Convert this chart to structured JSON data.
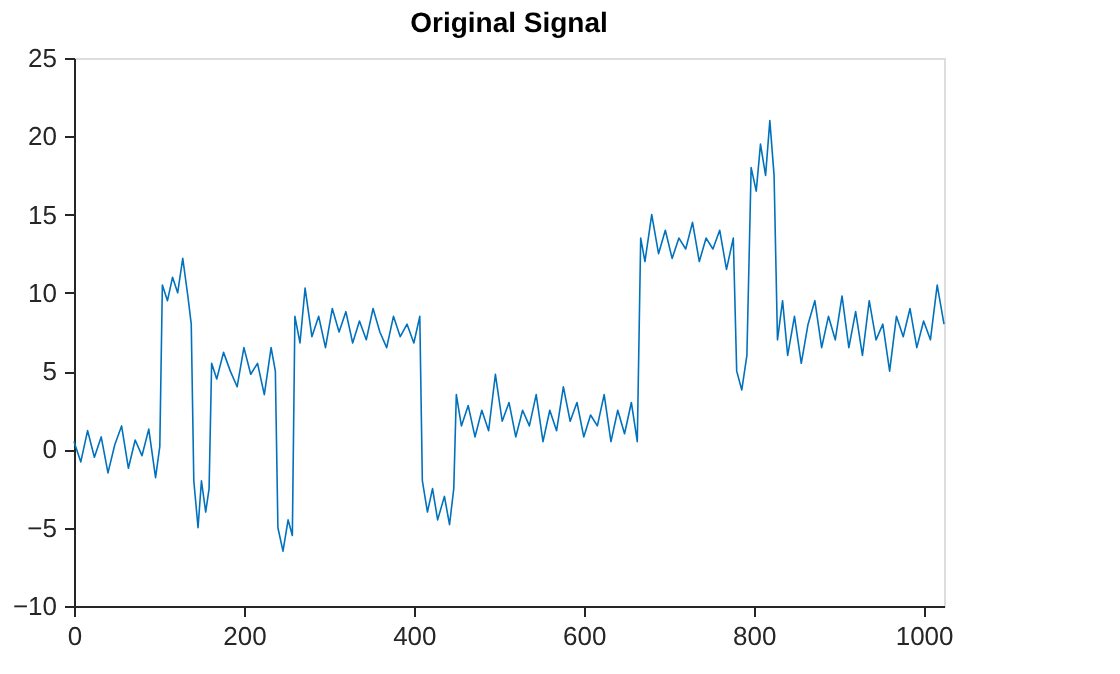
{
  "chart_data": {
    "type": "line",
    "title": "Original Signal",
    "xlim": [
      0,
      1024
    ],
    "xticks": [
      0,
      200,
      400,
      600,
      800,
      1000
    ],
    "ylim": [
      -10,
      25
    ],
    "yticks": [
      -10,
      -5,
      0,
      5,
      10,
      15,
      20,
      25
    ],
    "grid": false,
    "legend": false,
    "marker": "none",
    "line_style": "solid",
    "x": [
      0,
      8,
      16,
      24,
      32,
      40,
      48,
      56,
      64,
      72,
      80,
      88,
      96,
      101,
      104,
      110,
      116,
      122,
      128,
      134,
      138,
      141,
      146,
      150,
      155,
      159,
      162,
      168,
      176,
      184,
      192,
      200,
      208,
      216,
      224,
      232,
      237,
      240,
      246,
      252,
      257,
      260,
      266,
      272,
      280,
      288,
      296,
      304,
      312,
      320,
      328,
      336,
      344,
      352,
      360,
      368,
      376,
      384,
      392,
      400,
      407,
      410,
      416,
      422,
      428,
      436,
      442,
      447,
      450,
      456,
      464,
      472,
      480,
      488,
      496,
      504,
      512,
      520,
      528,
      536,
      544,
      552,
      560,
      568,
      576,
      584,
      592,
      600,
      608,
      616,
      624,
      632,
      640,
      648,
      656,
      663,
      667,
      672,
      680,
      688,
      696,
      704,
      712,
      720,
      728,
      736,
      744,
      752,
      760,
      768,
      776,
      780,
      786,
      792,
      797,
      803,
      808,
      814,
      819,
      824,
      828,
      834,
      840,
      848,
      856,
      864,
      872,
      880,
      888,
      896,
      904,
      912,
      920,
      928,
      936,
      944,
      952,
      960,
      968,
      976,
      984,
      992,
      1000,
      1008,
      1016,
      1024
    ],
    "series": [
      {
        "color": "#0072bd",
        "values": [
          0.5,
          -0.8,
          1.2,
          -0.5,
          0.8,
          -1.5,
          0.3,
          1.5,
          -1.2,
          0.6,
          -0.4,
          1.3,
          -1.8,
          0.2,
          10.5,
          9.5,
          11,
          10,
          12.2,
          9.8,
          8,
          -2,
          -5,
          -2,
          -4,
          -2.5,
          5.5,
          4.5,
          6.2,
          5,
          4,
          6.5,
          4.8,
          5.5,
          3.5,
          6.5,
          5,
          -5,
          -6.5,
          -4.5,
          -5.5,
          8.5,
          6.8,
          10.3,
          7.2,
          8.5,
          6.5,
          9,
          7.5,
          8.8,
          6.8,
          8.2,
          7,
          9,
          7.5,
          6.5,
          8.5,
          7.2,
          8,
          6.8,
          8.5,
          -2,
          -4,
          -2.5,
          -4.5,
          -3,
          -4.8,
          -2.5,
          3.5,
          1.5,
          2.8,
          0.8,
          2.5,
          1.2,
          4.8,
          1.8,
          3,
          0.8,
          2.5,
          1.5,
          3.5,
          0.5,
          2.5,
          1.2,
          4,
          1.8,
          3,
          0.8,
          2.2,
          1.5,
          3.5,
          0.5,
          2.5,
          1,
          3,
          0.5,
          13.5,
          12,
          15,
          12.5,
          14,
          12.2,
          13.5,
          12.8,
          14.5,
          12,
          13.5,
          12.8,
          14,
          11.5,
          13.5,
          5,
          3.8,
          6,
          18,
          16.5,
          19.5,
          17.5,
          21,
          17.5,
          7,
          9.5,
          6,
          8.5,
          5.5,
          8,
          9.5,
          6.5,
          8.5,
          7,
          9.8,
          6.5,
          8.8,
          6,
          9.5,
          7,
          8,
          5,
          8.5,
          7.2,
          9,
          6.5,
          8.2,
          7,
          10.5,
          8
        ]
      }
    ]
  }
}
